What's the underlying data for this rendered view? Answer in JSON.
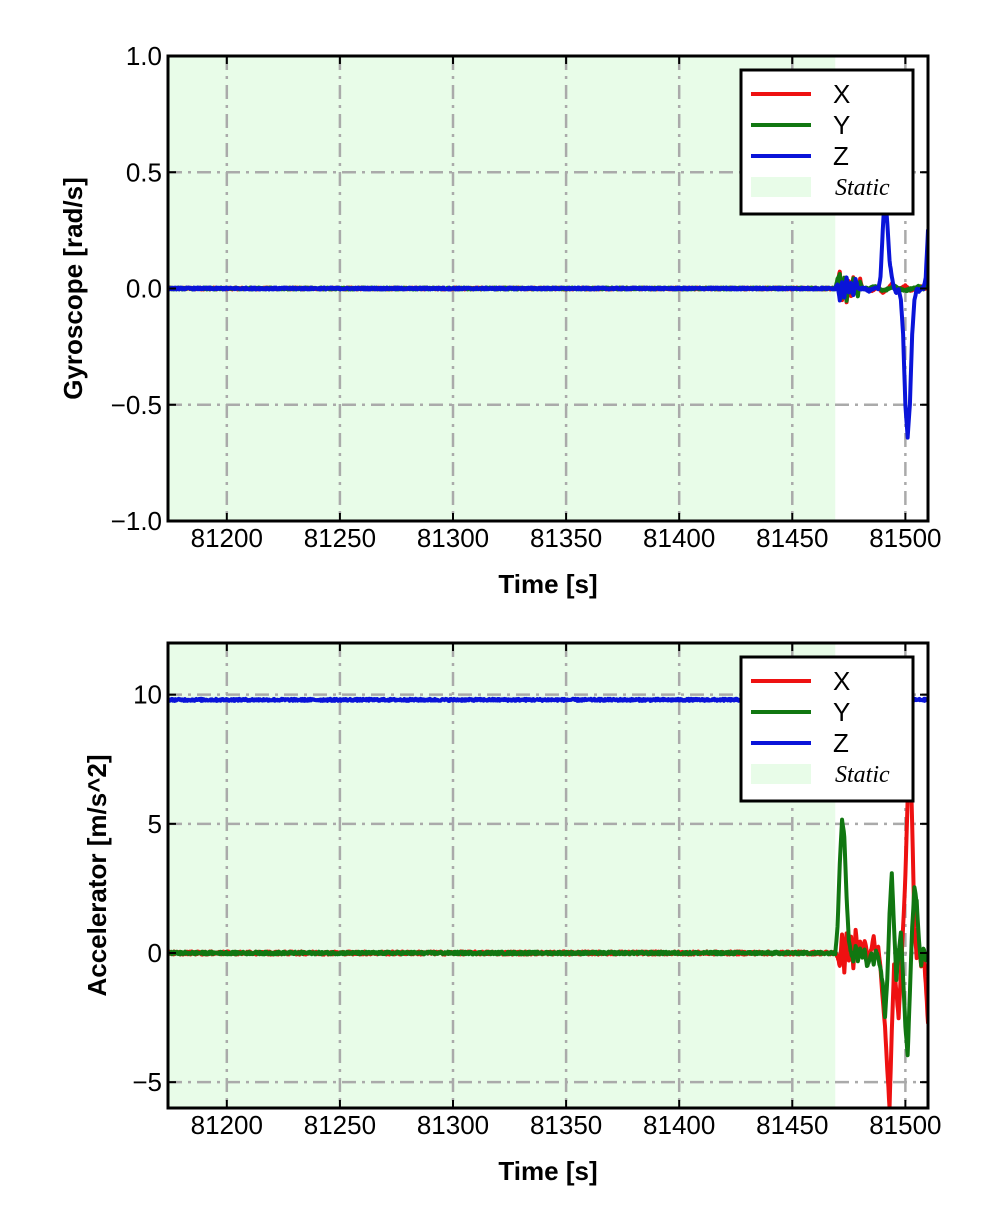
{
  "chart_data": [
    {
      "id": "gyro",
      "type": "line",
      "title": "",
      "xlabel": "Time [s]",
      "ylabel": "Gyroscope [rad/s]",
      "xlim": [
        81174,
        81510
      ],
      "ylim": [
        -1.0,
        1.0
      ],
      "x_ticks": [
        81200,
        81250,
        81300,
        81350,
        81400,
        81450,
        81500
      ],
      "y_ticks": [
        -1.0,
        -0.5,
        0.0,
        0.5,
        1.0
      ],
      "x_tick_labels": [
        "81200",
        "81250",
        "81300",
        "81350",
        "81400",
        "81450",
        "81500"
      ],
      "y_tick_labels": [
        "−1.0",
        "−0.5",
        "0.0",
        "0.5",
        "1.0"
      ],
      "grid": true,
      "legend_position": "top-right",
      "static_region": {
        "label": "Static",
        "x_start": 81174,
        "x_end": 81469,
        "color": "#e8fce8"
      },
      "series": [
        {
          "name": "X",
          "color": "#ee1111",
          "noise": 0.004,
          "points": [
            [
              81174,
              0.0
            ],
            [
              81469,
              0.0
            ],
            [
              81470,
              0.03
            ],
            [
              81471,
              0.07
            ],
            [
              81472,
              -0.05
            ],
            [
              81473,
              0.04
            ],
            [
              81474,
              -0.06
            ],
            [
              81475,
              0.03
            ],
            [
              81476,
              -0.03
            ],
            [
              81477,
              0.05
            ],
            [
              81478,
              0.0
            ],
            [
              81479,
              -0.02
            ],
            [
              81480,
              0.04
            ],
            [
              81481,
              0.0
            ],
            [
              81483,
              0.0
            ],
            [
              81485,
              -0.01
            ],
            [
              81488,
              0.01
            ],
            [
              81490,
              -0.02
            ],
            [
              81492,
              0.0
            ],
            [
              81494,
              0.02
            ],
            [
              81496,
              -0.01
            ],
            [
              81498,
              0.0
            ],
            [
              81500,
              0.01
            ],
            [
              81502,
              -0.01
            ],
            [
              81504,
              0.0
            ],
            [
              81507,
              0.01
            ],
            [
              81509,
              0.0
            ],
            [
              81510,
              0.05
            ]
          ]
        },
        {
          "name": "Y",
          "color": "#117711",
          "noise": 0.004,
          "points": [
            [
              81174,
              0.0
            ],
            [
              81469,
              0.0
            ],
            [
              81470,
              0.04
            ],
            [
              81471,
              0.06
            ],
            [
              81472,
              -0.04
            ],
            [
              81473,
              0.05
            ],
            [
              81474,
              -0.05
            ],
            [
              81475,
              0.02
            ],
            [
              81476,
              -0.02
            ],
            [
              81477,
              0.04
            ],
            [
              81478,
              0.0
            ],
            [
              81479,
              -0.03
            ],
            [
              81480,
              0.03
            ],
            [
              81481,
              0.0
            ],
            [
              81484,
              0.0
            ],
            [
              81487,
              0.01
            ],
            [
              81490,
              -0.01
            ],
            [
              81493,
              0.0
            ],
            [
              81495,
              0.01
            ],
            [
              81497,
              0.0
            ],
            [
              81500,
              -0.01
            ],
            [
              81503,
              0.0
            ],
            [
              81506,
              0.01
            ],
            [
              81508,
              0.0
            ],
            [
              81510,
              0.03
            ]
          ]
        },
        {
          "name": "Z",
          "color": "#0a14d9",
          "noise": 0.004,
          "points": [
            [
              81174,
              0.0
            ],
            [
              81469,
              0.0
            ],
            [
              81470,
              0.02
            ],
            [
              81471,
              -0.05
            ],
            [
              81472,
              0.03
            ],
            [
              81473,
              -0.04
            ],
            [
              81474,
              0.05
            ],
            [
              81475,
              -0.02
            ],
            [
              81476,
              0.02
            ],
            [
              81477,
              -0.03
            ],
            [
              81478,
              0.04
            ],
            [
              81479,
              0.0
            ],
            [
              81480,
              0.0
            ],
            [
              81482,
              0.0
            ],
            [
              81484,
              -0.01
            ],
            [
              81486,
              0.0
            ],
            [
              81488,
              0.0
            ],
            [
              81489,
              0.05
            ],
            [
              81490,
              0.25
            ],
            [
              81491,
              0.42
            ],
            [
              81492,
              0.28
            ],
            [
              81493,
              0.12
            ],
            [
              81494,
              0.05
            ],
            [
              81495,
              0.0
            ],
            [
              81496,
              -0.02
            ],
            [
              81497,
              0.0
            ],
            [
              81498,
              -0.05
            ],
            [
              81499,
              -0.2
            ],
            [
              81500,
              -0.5
            ],
            [
              81501,
              -0.64
            ],
            [
              81502,
              -0.5
            ],
            [
              81503,
              -0.2
            ],
            [
              81504,
              -0.05
            ],
            [
              81505,
              0.0
            ],
            [
              81506,
              -0.01
            ],
            [
              81507,
              0.0
            ],
            [
              81508,
              0.0
            ],
            [
              81509,
              0.05
            ],
            [
              81510,
              0.25
            ]
          ]
        }
      ]
    },
    {
      "id": "accel",
      "type": "line",
      "title": "",
      "xlabel": "Time [s]",
      "ylabel": "Accelerator [m/s^2]",
      "xlim": [
        81174,
        81510
      ],
      "ylim": [
        -6.0,
        12.0
      ],
      "x_ticks": [
        81200,
        81250,
        81300,
        81350,
        81400,
        81450,
        81500
      ],
      "y_ticks": [
        -5,
        0,
        5,
        10
      ],
      "x_tick_labels": [
        "81200",
        "81250",
        "81300",
        "81350",
        "81400",
        "81450",
        "81500"
      ],
      "y_tick_labels": [
        "−5",
        "0",
        "5",
        "10"
      ],
      "grid": true,
      "legend_position": "top-right",
      "static_region": {
        "label": "Static",
        "x_start": 81174,
        "x_end": 81469,
        "color": "#e8fce8"
      },
      "series": [
        {
          "name": "X",
          "color": "#ee1111",
          "noise": 0.06,
          "points": [
            [
              81174,
              0.0
            ],
            [
              81469,
              0.0
            ],
            [
              81470,
              -0.1
            ],
            [
              81471,
              -0.5
            ],
            [
              81472,
              0.7
            ],
            [
              81473,
              -0.7
            ],
            [
              81474,
              0.8
            ],
            [
              81475,
              -0.3
            ],
            [
              81476,
              0.6
            ],
            [
              81477,
              -0.6
            ],
            [
              81478,
              0.9
            ],
            [
              81479,
              -0.1
            ],
            [
              81480,
              0.4
            ],
            [
              81481,
              0.1
            ],
            [
              81482,
              0.5
            ],
            [
              81483,
              0.0
            ],
            [
              81484,
              -0.3
            ],
            [
              81485,
              0.2
            ],
            [
              81486,
              0.6
            ],
            [
              81487,
              -0.1
            ],
            [
              81488,
              0.3
            ],
            [
              81489,
              -0.6
            ],
            [
              81490,
              -1.8
            ],
            [
              81491,
              -2.8
            ],
            [
              81492,
              -4.5
            ],
            [
              81493,
              -6.0
            ],
            [
              81494,
              -3.0
            ],
            [
              81495,
              -0.5
            ],
            [
              81496,
              -1.5
            ],
            [
              81497,
              -2.5
            ],
            [
              81498,
              -0.8
            ],
            [
              81499,
              1.0
            ],
            [
              81500,
              3.0
            ],
            [
              81501,
              6.0
            ],
            [
              81502,
              8.2
            ],
            [
              81503,
              5.0
            ],
            [
              81504,
              1.0
            ],
            [
              81505,
              -0.2
            ],
            [
              81506,
              0.2
            ],
            [
              81507,
              -0.5
            ],
            [
              81508,
              0.1
            ],
            [
              81509,
              -1.2
            ],
            [
              81510,
              -2.7
            ]
          ]
        },
        {
          "name": "Y",
          "color": "#117711",
          "noise": 0.05,
          "points": [
            [
              81174,
              0.0
            ],
            [
              81469,
              0.0
            ],
            [
              81470,
              1.0
            ],
            [
              81471,
              3.5
            ],
            [
              81472,
              5.2
            ],
            [
              81473,
              4.5
            ],
            [
              81474,
              2.2
            ],
            [
              81475,
              0.5
            ],
            [
              81476,
              0.0
            ],
            [
              81477,
              -0.3
            ],
            [
              81478,
              0.3
            ],
            [
              81479,
              -0.3
            ],
            [
              81480,
              0.2
            ],
            [
              81481,
              -0.2
            ],
            [
              81482,
              0.1
            ],
            [
              81483,
              -0.5
            ],
            [
              81484,
              -0.3
            ],
            [
              81485,
              0.0
            ],
            [
              81486,
              -0.4
            ],
            [
              81487,
              0.1
            ],
            [
              81488,
              -0.2
            ],
            [
              81489,
              -0.6
            ],
            [
              81490,
              -1.2
            ],
            [
              81491,
              -2.5
            ],
            [
              81492,
              -1.0
            ],
            [
              81493,
              1.5
            ],
            [
              81494,
              3.1
            ],
            [
              81495,
              1.0
            ],
            [
              81496,
              -1.0
            ],
            [
              81497,
              0.0
            ],
            [
              81498,
              0.8
            ],
            [
              81499,
              -1.0
            ],
            [
              81500,
              -2.8
            ],
            [
              81501,
              -4.0
            ],
            [
              81502,
              -1.5
            ],
            [
              81503,
              1.0
            ],
            [
              81504,
              2.5
            ],
            [
              81505,
              2.0
            ],
            [
              81506,
              0.5
            ],
            [
              81507,
              -0.5
            ],
            [
              81508,
              0.2
            ],
            [
              81509,
              -0.3
            ],
            [
              81510,
              -0.1
            ]
          ]
        },
        {
          "name": "Z",
          "color": "#0a14d9",
          "noise": 0.04,
          "points": [
            [
              81174,
              9.8
            ],
            [
              81469,
              9.8
            ],
            [
              81510,
              9.8
            ]
          ]
        }
      ]
    }
  ]
}
